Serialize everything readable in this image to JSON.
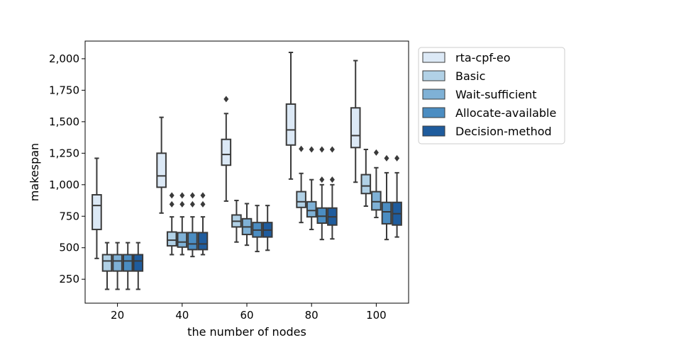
{
  "chart_data": {
    "type": "box",
    "xlabel": "the number of nodes",
    "ylabel": "makespan",
    "categories": [
      "20",
      "40",
      "60",
      "80",
      "100"
    ],
    "y_ticks": [
      250,
      500,
      750,
      1000,
      1250,
      1500,
      1750,
      2000
    ],
    "y_tick_labels": [
      "250",
      "500",
      "750",
      "1,000",
      "1,250",
      "1,500",
      "1,750",
      "2,000"
    ],
    "ylim": [
      60,
      2140
    ],
    "legend_position": "outside-right-top",
    "grid": false,
    "series": [
      {
        "name": "rta-cpf-eo",
        "color": "#dce9f6",
        "boxes": [
          {
            "whisker_low": 415,
            "q1": 645,
            "median": 835,
            "q3": 920,
            "whisker_high": 1210,
            "outliers": []
          },
          {
            "whisker_low": 775,
            "q1": 980,
            "median": 1070,
            "q3": 1250,
            "whisker_high": 1535,
            "outliers": []
          },
          {
            "whisker_low": 870,
            "q1": 1155,
            "median": 1240,
            "q3": 1360,
            "whisker_high": 1565,
            "outliers": [
              1680
            ]
          },
          {
            "whisker_low": 1045,
            "q1": 1315,
            "median": 1435,
            "q3": 1640,
            "whisker_high": 2050,
            "outliers": []
          },
          {
            "whisker_low": 1020,
            "q1": 1295,
            "median": 1390,
            "q3": 1610,
            "whisker_high": 1985,
            "outliers": []
          }
        ]
      },
      {
        "name": "Basic",
        "color": "#b1d1e6",
        "boxes": [
          {
            "whisker_low": 170,
            "q1": 315,
            "median": 395,
            "q3": 445,
            "whisker_high": 540,
            "outliers": []
          },
          {
            "whisker_low": 445,
            "q1": 515,
            "median": 560,
            "q3": 625,
            "whisker_high": 745,
            "outliers": [
              845,
              915
            ]
          },
          {
            "whisker_low": 545,
            "q1": 665,
            "median": 710,
            "q3": 760,
            "whisker_high": 875,
            "outliers": []
          },
          {
            "whisker_low": 700,
            "q1": 820,
            "median": 865,
            "q3": 945,
            "whisker_high": 1090,
            "outliers": [
              1285
            ]
          },
          {
            "whisker_low": 830,
            "q1": 930,
            "median": 990,
            "q3": 1080,
            "whisker_high": 1280,
            "outliers": []
          }
        ]
      },
      {
        "name": "Wait-sufficient",
        "color": "#7fb1d6",
        "boxes": [
          {
            "whisker_low": 170,
            "q1": 315,
            "median": 395,
            "q3": 445,
            "whisker_high": 540,
            "outliers": []
          },
          {
            "whisker_low": 445,
            "q1": 505,
            "median": 545,
            "q3": 620,
            "whisker_high": 745,
            "outliers": [
              845,
              915
            ]
          },
          {
            "whisker_low": 520,
            "q1": 605,
            "median": 665,
            "q3": 730,
            "whisker_high": 850,
            "outliers": []
          },
          {
            "whisker_low": 645,
            "q1": 745,
            "median": 795,
            "q3": 865,
            "whisker_high": 1040,
            "outliers": [
              1280
            ]
          },
          {
            "whisker_low": 740,
            "q1": 800,
            "median": 865,
            "q3": 945,
            "whisker_high": 1135,
            "outliers": [
              1255
            ]
          }
        ]
      },
      {
        "name": "Allocate-available",
        "color": "#4b8dc2",
        "boxes": [
          {
            "whisker_low": 170,
            "q1": 315,
            "median": 395,
            "q3": 445,
            "whisker_high": 540,
            "outliers": []
          },
          {
            "whisker_low": 430,
            "q1": 485,
            "median": 530,
            "q3": 620,
            "whisker_high": 745,
            "outliers": [
              845,
              915
            ]
          },
          {
            "whisker_low": 470,
            "q1": 585,
            "median": 640,
            "q3": 700,
            "whisker_high": 835,
            "outliers": []
          },
          {
            "whisker_low": 565,
            "q1": 695,
            "median": 750,
            "q3": 815,
            "whisker_high": 1000,
            "outliers": [
              1040,
              1280
            ]
          },
          {
            "whisker_low": 565,
            "q1": 690,
            "median": 785,
            "q3": 860,
            "whisker_high": 1095,
            "outliers": [
              1210
            ]
          }
        ]
      },
      {
        "name": "Decision-method",
        "color": "#1f5c9d",
        "boxes": [
          {
            "whisker_low": 170,
            "q1": 315,
            "median": 395,
            "q3": 445,
            "whisker_high": 540,
            "outliers": []
          },
          {
            "whisker_low": 445,
            "q1": 485,
            "median": 530,
            "q3": 620,
            "whisker_high": 745,
            "outliers": [
              845,
              915
            ]
          },
          {
            "whisker_low": 480,
            "q1": 585,
            "median": 640,
            "q3": 700,
            "whisker_high": 835,
            "outliers": []
          },
          {
            "whisker_low": 570,
            "q1": 680,
            "median": 745,
            "q3": 815,
            "whisker_high": 1000,
            "outliers": [
              1040,
              1280
            ]
          },
          {
            "whisker_low": 585,
            "q1": 680,
            "median": 770,
            "q3": 860,
            "whisker_high": 1095,
            "outliers": [
              1210
            ]
          }
        ]
      }
    ]
  }
}
